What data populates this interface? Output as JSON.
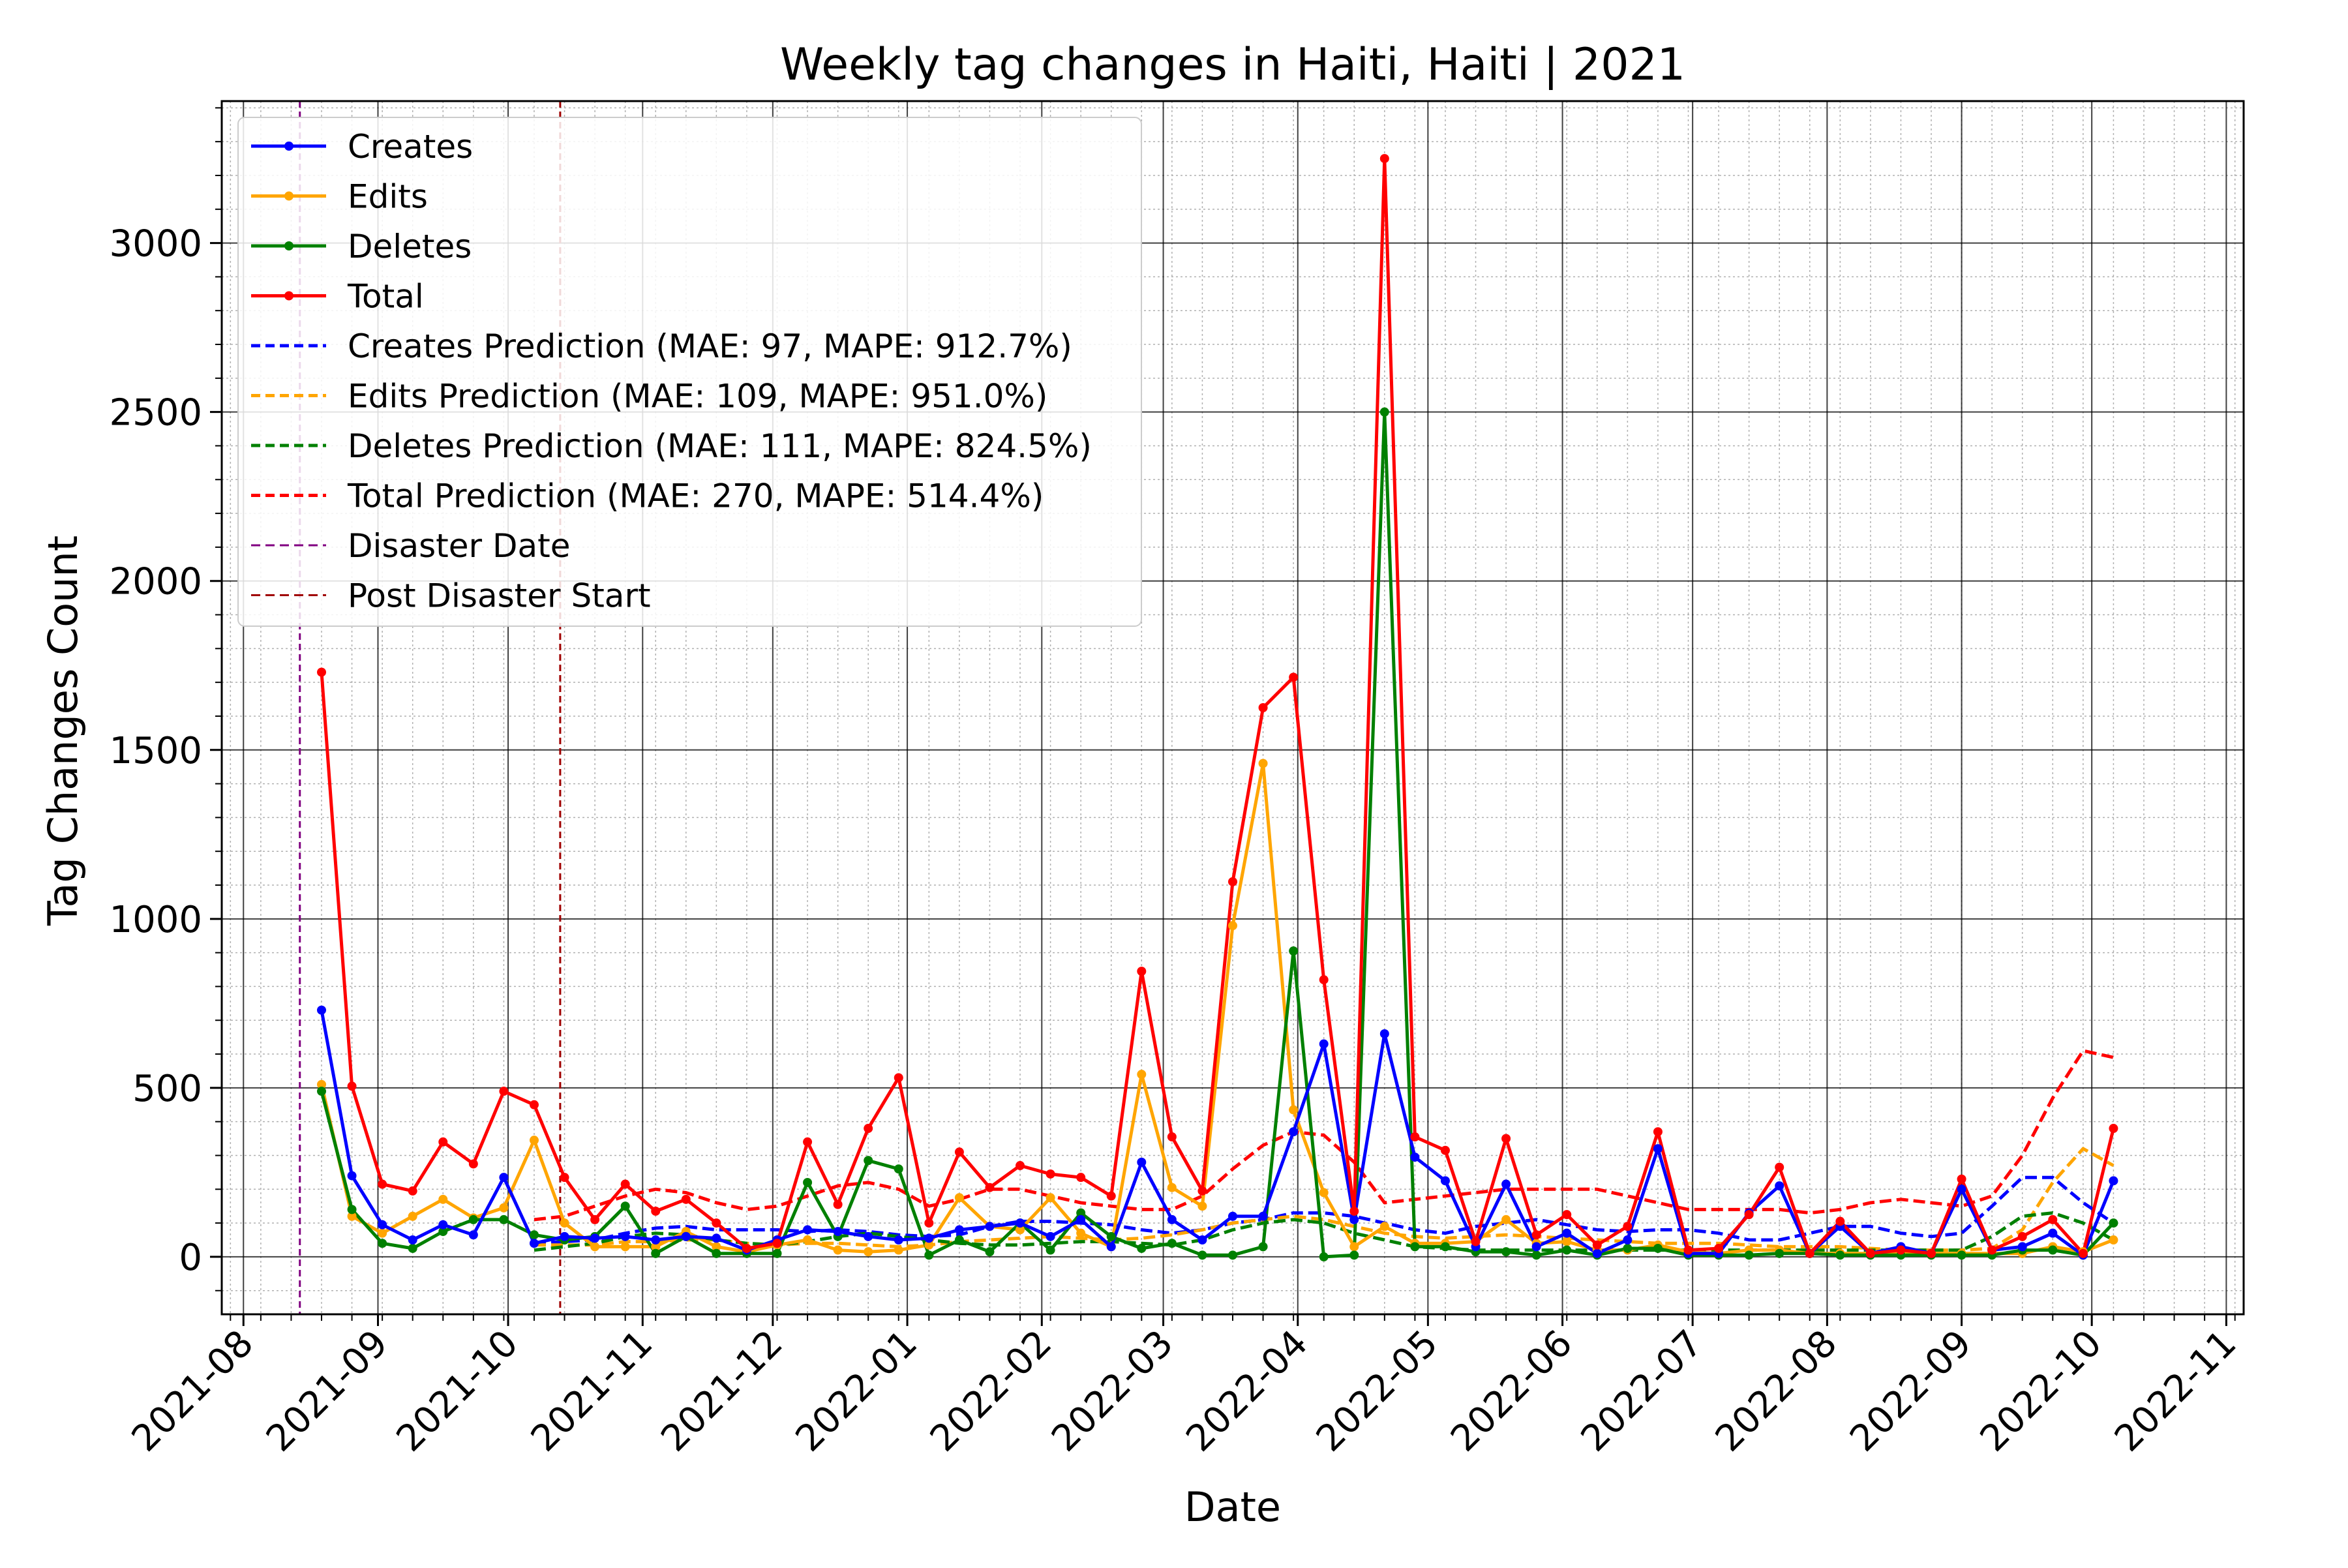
{
  "chart_data": {
    "type": "line",
    "title": "Weekly tag changes in Haiti, Haiti | 2021",
    "xlabel": "Date",
    "ylabel": "Tag Changes Count",
    "x_ticks": [
      "2021-08",
      "2021-09",
      "2021-10",
      "2021-11",
      "2021-12",
      "2022-01",
      "2022-02",
      "2022-03",
      "2022-04",
      "2022-05",
      "2022-06",
      "2022-07",
      "2022-08",
      "2022-09",
      "2022-10",
      "2022-11"
    ],
    "y_ticks": [
      0,
      500,
      1000,
      1500,
      2000,
      2500,
      3000
    ],
    "xlim": [
      "2021-07-27",
      "2022-11-05"
    ],
    "ylim": [
      -170,
      3420
    ],
    "grid": "major and minor",
    "legend_position": "upper-left",
    "x": [
      "2021-08-19",
      "2021-08-26",
      "2021-09-02",
      "2021-09-09",
      "2021-09-16",
      "2021-09-23",
      "2021-09-30",
      "2021-10-07",
      "2021-10-14",
      "2021-10-21",
      "2021-10-28",
      "2021-11-04",
      "2021-11-11",
      "2021-11-18",
      "2021-11-25",
      "2021-12-02",
      "2021-12-09",
      "2021-12-16",
      "2021-12-23",
      "2021-12-30",
      "2022-01-06",
      "2022-01-13",
      "2022-01-20",
      "2022-01-27",
      "2022-02-03",
      "2022-02-10",
      "2022-02-17",
      "2022-02-24",
      "2022-03-03",
      "2022-03-10",
      "2022-03-17",
      "2022-03-24",
      "2022-03-31",
      "2022-04-07",
      "2022-04-14",
      "2022-04-21",
      "2022-04-28",
      "2022-05-05",
      "2022-05-12",
      "2022-05-19",
      "2022-05-26",
      "2022-06-02",
      "2022-06-09",
      "2022-06-16",
      "2022-06-23",
      "2022-06-30",
      "2022-07-07",
      "2022-07-14",
      "2022-07-21",
      "2022-07-28",
      "2022-08-04",
      "2022-08-11",
      "2022-08-18",
      "2022-08-25",
      "2022-09-01",
      "2022-09-08",
      "2022-09-15",
      "2022-09-22",
      "2022-09-29",
      "2022-10-06"
    ],
    "series": [
      {
        "name": "Creates",
        "color": "#0000ff",
        "style": "solid",
        "marker": true,
        "values": [
          730,
          240,
          95,
          50,
          95,
          65,
          235,
          40,
          60,
          55,
          60,
          50,
          60,
          55,
          20,
          50,
          80,
          75,
          60,
          50,
          55,
          80,
          90,
          100,
          60,
          110,
          30,
          280,
          110,
          50,
          120,
          120,
          370,
          630,
          110,
          660,
          295,
          225,
          30,
          215,
          30,
          70,
          10,
          50,
          320,
          10,
          10,
          130,
          210,
          10,
          90,
          10,
          30,
          10,
          200,
          20,
          30,
          70,
          5,
          225
        ]
      },
      {
        "name": "Edits",
        "color": "#ffa500",
        "style": "solid",
        "marker": true,
        "values": [
          510,
          120,
          70,
          120,
          170,
          115,
          145,
          345,
          100,
          30,
          30,
          30,
          75,
          30,
          15,
          35,
          50,
          20,
          15,
          20,
          35,
          175,
          90,
          80,
          175,
          70,
          30,
          540,
          205,
          150,
          980,
          1460,
          435,
          190,
          30,
          90,
          40,
          40,
          45,
          110,
          40,
          45,
          20,
          20,
          35,
          15,
          10,
          20,
          20,
          10,
          10,
          10,
          10,
          10,
          10,
          10,
          10,
          30,
          15,
          50
        ]
      },
      {
        "name": "Deletes",
        "color": "#008000",
        "style": "solid",
        "marker": true,
        "values": [
          490,
          140,
          40,
          25,
          75,
          110,
          110,
          65,
          50,
          60,
          150,
          10,
          60,
          10,
          10,
          10,
          220,
          60,
          285,
          260,
          5,
          50,
          15,
          100,
          20,
          130,
          60,
          25,
          40,
          5,
          5,
          30,
          905,
          0,
          5,
          2500,
          30,
          30,
          15,
          15,
          5,
          20,
          5,
          25,
          25,
          5,
          5,
          5,
          10,
          10,
          5,
          5,
          5,
          5,
          5,
          5,
          20,
          20,
          5,
          100
        ]
      },
      {
        "name": "Total",
        "color": "#ff0000",
        "style": "solid",
        "marker": true,
        "values": [
          1730,
          505,
          215,
          195,
          340,
          275,
          490,
          450,
          235,
          110,
          215,
          135,
          170,
          100,
          25,
          40,
          340,
          155,
          380,
          530,
          100,
          310,
          205,
          270,
          245,
          235,
          180,
          845,
          355,
          195,
          1110,
          1625,
          1715,
          820,
          135,
          3250,
          355,
          315,
          45,
          350,
          65,
          125,
          35,
          90,
          370,
          20,
          25,
          125,
          265,
          10,
          105,
          10,
          20,
          10,
          230,
          20,
          60,
          110,
          10,
          380
        ]
      },
      {
        "name": "Creates Prediction (MAE: 97, MAPE: 912.7%)",
        "color": "#0000ff",
        "style": "dashed",
        "marker": false,
        "values": [
          null,
          null,
          null,
          null,
          null,
          null,
          null,
          40,
          45,
          50,
          70,
          85,
          90,
          80,
          80,
          80,
          75,
          80,
          75,
          65,
          60,
          65,
          90,
          105,
          105,
          100,
          95,
          80,
          70,
          80,
          100,
          110,
          130,
          130,
          120,
          100,
          80,
          70,
          90,
          100,
          110,
          95,
          80,
          75,
          80,
          80,
          70,
          50,
          50,
          70,
          90,
          90,
          70,
          60,
          70,
          150,
          235,
          235,
          160,
          100
        ]
      },
      {
        "name": "Edits Prediction (MAE: 109, MAPE: 951.0%)",
        "color": "#ffa500",
        "style": "dashed",
        "marker": false,
        "values": [
          null,
          null,
          null,
          null,
          null,
          null,
          null,
          35,
          35,
          35,
          45,
          45,
          50,
          50,
          40,
          35,
          40,
          40,
          35,
          30,
          35,
          45,
          50,
          55,
          60,
          55,
          50,
          55,
          65,
          80,
          100,
          110,
          120,
          110,
          90,
          70,
          60,
          55,
          60,
          65,
          60,
          55,
          50,
          45,
          40,
          40,
          40,
          35,
          30,
          30,
          30,
          25,
          20,
          20,
          20,
          25,
          80,
          220,
          320,
          270
        ]
      },
      {
        "name": "Deletes Prediction (MAE: 111, MAPE: 824.5%)",
        "color": "#008000",
        "style": "dashed",
        "marker": false,
        "values": [
          null,
          null,
          null,
          null,
          null,
          null,
          null,
          20,
          30,
          40,
          60,
          70,
          65,
          50,
          40,
          35,
          45,
          60,
          70,
          60,
          50,
          40,
          35,
          35,
          40,
          45,
          45,
          40,
          35,
          50,
          80,
          100,
          110,
          100,
          70,
          50,
          30,
          25,
          20,
          20,
          20,
          20,
          20,
          20,
          20,
          20,
          20,
          20,
          20,
          20,
          20,
          20,
          20,
          20,
          20,
          60,
          120,
          130,
          100,
          50
        ]
      },
      {
        "name": "Total Prediction (MAE: 270, MAPE: 514.4%)",
        "color": "#ff0000",
        "style": "dashed",
        "marker": false,
        "values": [
          null,
          null,
          null,
          null,
          null,
          null,
          null,
          110,
          120,
          150,
          180,
          200,
          190,
          160,
          140,
          150,
          180,
          210,
          220,
          200,
          150,
          170,
          200,
          200,
          180,
          160,
          150,
          140,
          140,
          180,
          260,
          330,
          370,
          360,
          280,
          160,
          170,
          180,
          190,
          200,
          200,
          200,
          200,
          180,
          160,
          140,
          140,
          140,
          140,
          130,
          140,
          160,
          170,
          160,
          150,
          180,
          300,
          470,
          610,
          590
        ]
      }
    ],
    "vlines": [
      {
        "name": "Disaster Date",
        "date": "2021-08-14",
        "color": "#800080",
        "style": "dashed"
      },
      {
        "name": "Post Disaster Start",
        "date": "2021-10-13",
        "color": "#a00000",
        "style": "dashed"
      }
    ]
  }
}
